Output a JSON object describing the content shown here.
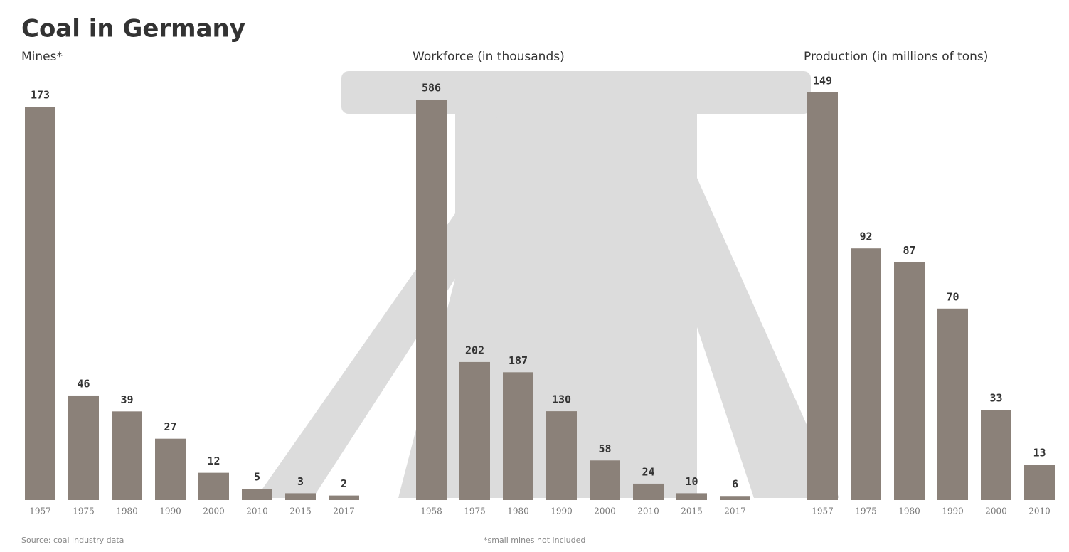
{
  "title": "Coal in Germany",
  "source": "Source: coal industry data",
  "footnote": "*small mines not included",
  "chart_data": [
    {
      "type": "bar",
      "subtitle": "Mines*",
      "color": "#8b8179",
      "categories": [
        "1957",
        "1975",
        "1980",
        "1990",
        "2000",
        "2010",
        "2015",
        "2017"
      ],
      "values": [
        173,
        46,
        39,
        27,
        12,
        5,
        3,
        2
      ]
    },
    {
      "type": "bar",
      "subtitle": "Workforce (in thousands)",
      "color": "#8b8179",
      "categories": [
        "1958",
        "1975",
        "1980",
        "1990",
        "2000",
        "2010",
        "2015",
        "2017"
      ],
      "values": [
        586,
        202,
        187,
        130,
        58,
        24,
        10,
        6
      ]
    },
    {
      "type": "bar",
      "subtitle": "Production (in millions of tons)",
      "color": "#8b8179",
      "categories": [
        "1957",
        "1975",
        "1980",
        "1990",
        "2000",
        "2010"
      ],
      "values": [
        149,
        92,
        87,
        70,
        33,
        13
      ]
    }
  ]
}
